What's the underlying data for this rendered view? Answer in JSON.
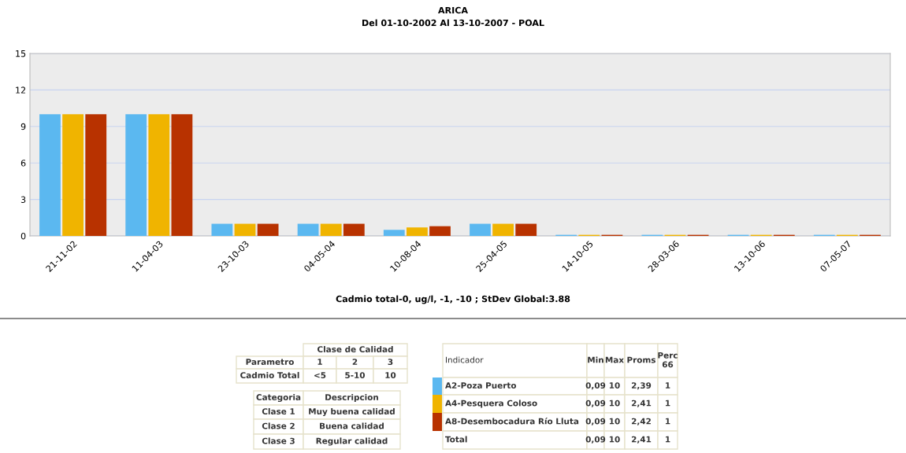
{
  "chart_data": {
    "type": "bar",
    "title": "ARICA",
    "subtitle": "Del 01-10-2002 Al 13-10-2007 - POAL",
    "xlabel": "Cadmio total-0, ug/l, -1, -10 ; StDev Global:3.88",
    "categories": [
      "21-11-02",
      "11-04-03",
      "23-10-03",
      "04-05-04",
      "10-08-04",
      "25-04-05",
      "14-10-05",
      "28-03-06",
      "13-10-06",
      "07-05-07"
    ],
    "series": [
      {
        "name": "A2-Poza Puerto",
        "color": "#5bb8f0",
        "values": [
          10,
          10,
          1,
          1,
          0.5,
          1,
          0.09,
          0.09,
          0.09,
          0.09
        ]
      },
      {
        "name": "A4-Pesquera Coloso",
        "color": "#f0b400",
        "values": [
          10,
          10,
          1,
          1,
          0.7,
          1,
          0.09,
          0.09,
          0.09,
          0.09
        ]
      },
      {
        "name": "A8-Desembocadura Río Lluta",
        "color": "#b83200",
        "values": [
          10,
          10,
          1,
          1,
          0.8,
          1,
          0.09,
          0.09,
          0.09,
          0.09
        ]
      }
    ],
    "ylim": [
      0,
      15
    ],
    "yticks": [
      0,
      3,
      6,
      9,
      12,
      15
    ],
    "grid": "y",
    "legend": "bottom",
    "annotations": [
      "Clase de Calidad",
      "Parametro",
      "1",
      "2",
      "3",
      "Cadmio Total",
      "<5",
      "5-10",
      "10",
      "Categoria",
      "Descripcion",
      "Clase 1",
      "Muy buena calidad",
      "Clase 2",
      "Buena calidad",
      "Clase 3",
      "Regular calidad",
      "Indicador",
      "Min",
      "Max",
      "Proms",
      "Perc\n66",
      "0,09",
      "10",
      "2,39",
      "1",
      "0,09",
      "10",
      "2,41",
      "1",
      "0,09",
      "10",
      "2,42",
      "1",
      "Total",
      "0,09",
      "10",
      "2,41",
      "1"
    ]
  }
}
